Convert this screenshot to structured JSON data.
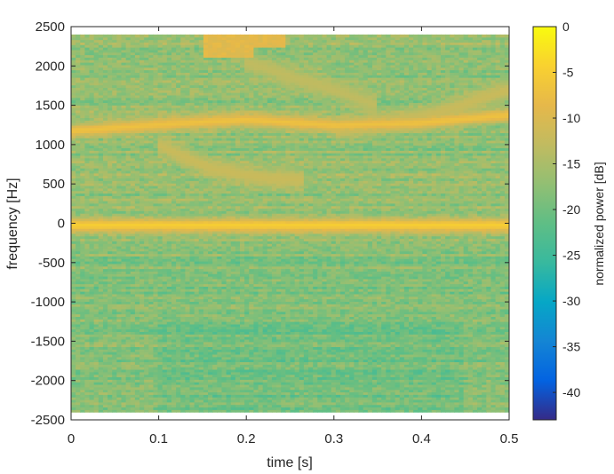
{
  "chart_data": {
    "type": "heatmap",
    "title": "",
    "xlabel": "time [s]",
    "ylabel": "frequency [Hz]",
    "xlim": [
      0,
      0.5
    ],
    "ylim": [
      -2500,
      2500
    ],
    "x_ticks": [
      0,
      0.1,
      0.2,
      0.3,
      0.4,
      0.5
    ],
    "x_tick_labels": [
      "0",
      "0.1",
      "0.2",
      "0.3",
      "0.4",
      "0.5"
    ],
    "y_ticks": [
      2500,
      2000,
      1500,
      1000,
      500,
      0,
      -500,
      -1000,
      -1500,
      -2000,
      -2500
    ],
    "y_tick_labels": [
      "2500",
      "2000",
      "1500",
      "1000",
      "500",
      "0",
      "-500",
      "-1000",
      "-1500",
      "-2000",
      "-2500"
    ],
    "data_extent": {
      "x": [
        0,
        0.5
      ],
      "y": [
        -2400,
        2400
      ]
    },
    "colorbar": {
      "label": "normalized power [dB]",
      "range": [
        -43,
        0
      ],
      "ticks": [
        0,
        -5,
        -10,
        -15,
        -20,
        -25,
        -30,
        -35,
        -40
      ],
      "tick_labels": [
        "0",
        "-5",
        "-10",
        "-15",
        "-20",
        "-25",
        "-30",
        "-35",
        "-40"
      ],
      "colormap": "parula"
    },
    "background_level_db": -17,
    "features": [
      {
        "name": "",
        "kind": "line",
        "points": [
          [
            0,
            1180
          ],
          [
            0.1,
            1260
          ],
          [
            0.2,
            1320
          ],
          [
            0.3,
            1250
          ],
          [
            0.4,
            1280
          ],
          [
            0.5,
            1380
          ]
        ],
        "level_db": -7
      },
      {
        "name": "",
        "kind": "line",
        "points": [
          [
            0,
            -20
          ],
          [
            0.1,
            -20
          ],
          [
            0.2,
            -20
          ],
          [
            0.3,
            -20
          ],
          [
            0.4,
            -20
          ],
          [
            0.5,
            -20
          ]
        ],
        "level_db": -5
      },
      {
        "name": "",
        "kind": "line",
        "points": [
          [
            0.1,
            1000
          ],
          [
            0.16,
            700
          ],
          [
            0.22,
            580
          ],
          [
            0.265,
            560
          ]
        ],
        "level_db": -12
      },
      {
        "name": "",
        "kind": "line",
        "points": [
          [
            0.2,
            2050
          ],
          [
            0.3,
            1700
          ],
          [
            0.35,
            1500
          ]
        ],
        "level_db": -13
      },
      {
        "name": "",
        "kind": "line",
        "points": [
          [
            0.3,
            1180
          ],
          [
            0.4,
            1350
          ],
          [
            0.5,
            1700
          ]
        ],
        "level_db": -12
      },
      {
        "name": "",
        "kind": "patch",
        "x_range": [
          0.15,
          0.21
        ],
        "y_range": [
          2100,
          2400
        ],
        "level_db": -9
      },
      {
        "name": "",
        "kind": "patch",
        "x_range": [
          0.21,
          0.245
        ],
        "y_range": [
          2250,
          2400
        ],
        "level_db": -9
      }
    ]
  }
}
